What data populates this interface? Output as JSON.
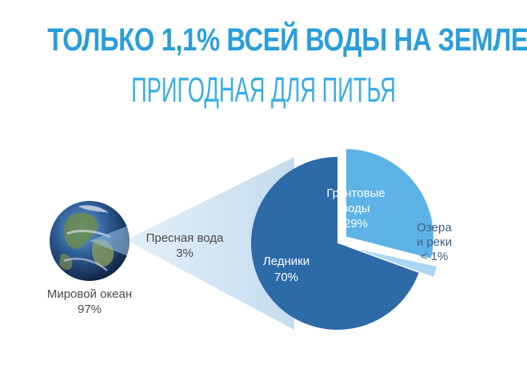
{
  "title": {
    "main": "ТОЛЬКО 1,1% ВСЕЙ ВОДЫ НА ЗЕМЛЕ -",
    "sub": "ПРИГОДНАЯ ДЛЯ ПИТЬЯ"
  },
  "colors": {
    "title": "#2a9ed9",
    "glaciers": "#2d6aa8",
    "groundwater": "#5db3e6",
    "lakes": "#a9d6f2",
    "funnel": "#cfe4f4"
  },
  "chart_data": [
    {
      "type": "pie",
      "labels": [
        "Мировой океан",
        "Пресная вода"
      ],
      "values": [
        97,
        3
      ],
      "value_labels": [
        "97%",
        "3%"
      ]
    },
    {
      "type": "pie",
      "labels": [
        "Ледники",
        "Грунтовые воды",
        "Озера и реки"
      ],
      "label_lines": [
        [
          "Ледники"
        ],
        [
          "Грунтовые",
          "воды"
        ],
        [
          "Озера",
          "и реки"
        ]
      ],
      "values": [
        70,
        29,
        1
      ],
      "value_labels": [
        "70%",
        "29%",
        "< 1%"
      ]
    }
  ]
}
